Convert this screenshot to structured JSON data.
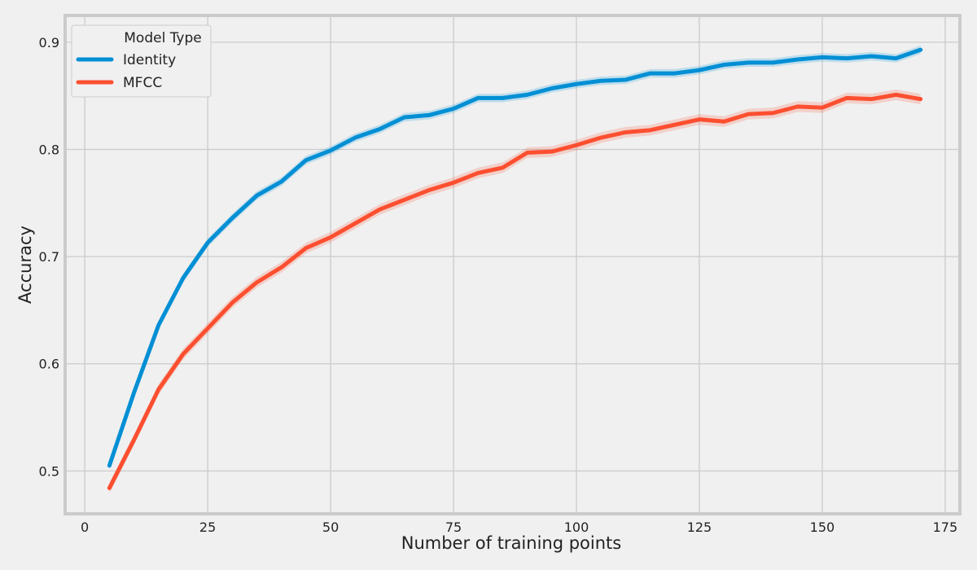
{
  "chart_data": {
    "type": "line",
    "title": "",
    "xlabel": "Number of training points",
    "ylabel": "Accuracy",
    "xlim": [
      -4,
      178
    ],
    "ylim": [
      0.46,
      0.925
    ],
    "xticks": [
      0,
      25,
      50,
      75,
      100,
      125,
      150,
      175
    ],
    "yticks": [
      0.5,
      0.6,
      0.7,
      0.8,
      0.9
    ],
    "grid": true,
    "legend": {
      "title": "Model Type",
      "placement": "top-left"
    },
    "confidence_band": true,
    "x": [
      5,
      10,
      15,
      20,
      25,
      30,
      35,
      40,
      45,
      50,
      55,
      60,
      65,
      70,
      75,
      80,
      85,
      90,
      95,
      100,
      105,
      110,
      115,
      120,
      125,
      130,
      135,
      140,
      145,
      150,
      155,
      160,
      165,
      170
    ],
    "series": [
      {
        "name": "Identity",
        "color": "#008fd5",
        "values": [
          0.505,
          0.573,
          0.636,
          0.68,
          0.713,
          0.736,
          0.757,
          0.77,
          0.79,
          0.799,
          0.811,
          0.819,
          0.83,
          0.832,
          0.838,
          0.848,
          0.848,
          0.851,
          0.857,
          0.861,
          0.864,
          0.865,
          0.871,
          0.871,
          0.874,
          0.879,
          0.881,
          0.881,
          0.884,
          0.886,
          0.885,
          0.887,
          0.885,
          0.893
        ],
        "band": 0.004
      },
      {
        "name": "MFCC",
        "color": "#fc4f30",
        "values": [
          0.484,
          0.529,
          0.576,
          0.609,
          0.633,
          0.657,
          0.676,
          0.69,
          0.708,
          0.718,
          0.731,
          0.744,
          0.753,
          0.762,
          0.769,
          0.778,
          0.783,
          0.797,
          0.798,
          0.804,
          0.811,
          0.816,
          0.818,
          0.823,
          0.828,
          0.826,
          0.833,
          0.834,
          0.84,
          0.839,
          0.848,
          0.847,
          0.851,
          0.847
        ],
        "band": 0.005
      }
    ]
  }
}
